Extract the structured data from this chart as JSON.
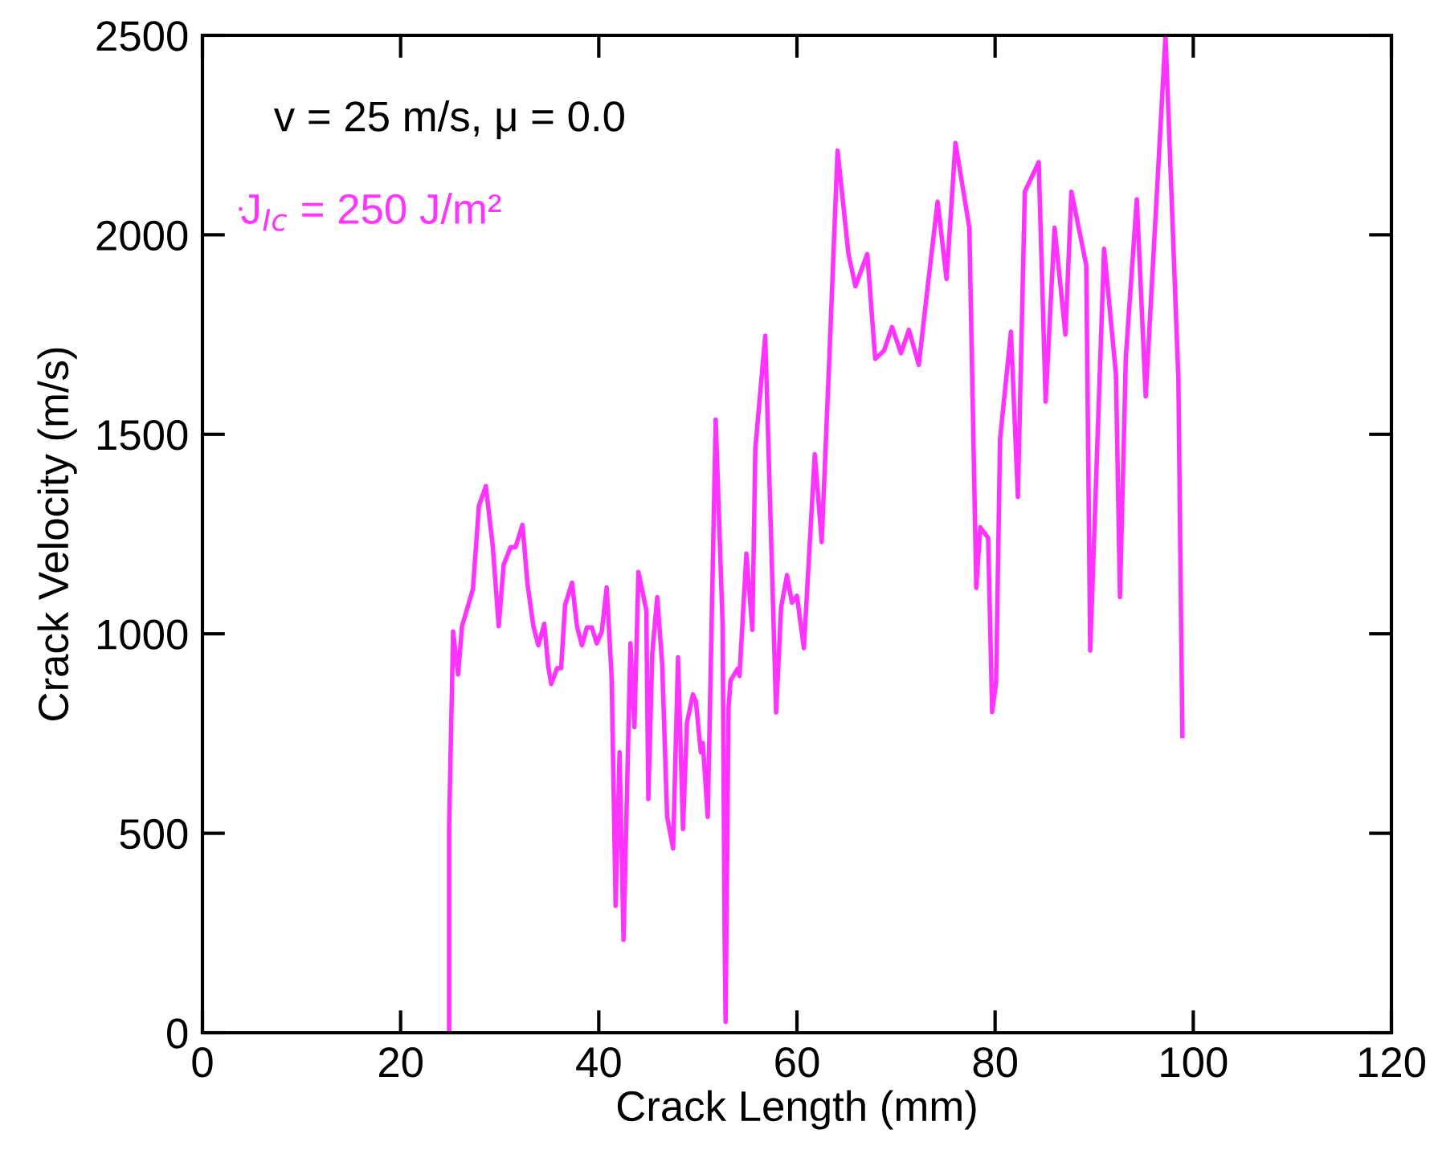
{
  "chart_data": {
    "type": "line",
    "xlabel": "Crack Length (mm)",
    "ylabel": "Crack Velocity (m/s)",
    "annotations": [
      "v = 25 m/s, μ = 0.0"
    ],
    "xlim": [
      0,
      120
    ],
    "xticks": [
      0,
      20,
      40,
      60,
      80,
      100,
      120
    ],
    "ylim": [
      0,
      2500
    ],
    "yticks": [
      0,
      500,
      1000,
      1500,
      2000,
      2500
    ],
    "grid": false,
    "legend": "top left",
    "marker": "none",
    "line_style": "solid",
    "series": [
      {
        "name": "J$_{Ic}$ = 250 J/m²",
        "color": "#ff33ff",
        "x": [
          24.9,
          24.9,
          25.3,
          25.8,
          26.2,
          27.3,
          27.9,
          28.6,
          29.3,
          29.9,
          30.4,
          31.1,
          31.6,
          32.3,
          32.8,
          33.4,
          33.9,
          34.5,
          34.9,
          35.2,
          35.8,
          36.2,
          36.6,
          37.3,
          37.8,
          38.3,
          38.8,
          39.3,
          39.8,
          40.3,
          40.8,
          41.3,
          41.7,
          42.1,
          42.5,
          43.2,
          43.6,
          44.0,
          44.8,
          45.0,
          45.4,
          45.9,
          46.4,
          46.9,
          47.5,
          48.0,
          48.5,
          48.9,
          49.5,
          49.8,
          50.3,
          50.5,
          51.0,
          51.8,
          52.5,
          52.7,
          52.8,
          53.1,
          53.3,
          54.0,
          54.2,
          54.9,
          55.5,
          55.8,
          56.8,
          57.9,
          58.4,
          59.0,
          59.5,
          60.0,
          60.7,
          61.8,
          62.5,
          63.3,
          64.1,
          65.2,
          65.9,
          67.1,
          67.9,
          68.8,
          69.6,
          70.5,
          71.3,
          72.3,
          73.2,
          74.2,
          75.1,
          76.0,
          77.4,
          78.1,
          78.5,
          79.3,
          79.7,
          80.1,
          80.5,
          81.6,
          82.3,
          83.0,
          84.4,
          85.1,
          86.0,
          87.1,
          87.7,
          89.2,
          89.6,
          91.0,
          92.2,
          92.6,
          93.2,
          94.3,
          95.2,
          97.2,
          98.5,
          98.9
        ],
        "values": [
          0,
          523,
          1006,
          898,
          1019,
          1112,
          1320,
          1370,
          1220,
          1019,
          1173,
          1217,
          1217,
          1273,
          1126,
          1019,
          971,
          1025,
          918,
          874,
          914,
          914,
          1072,
          1128,
          1019,
          971,
          1016,
          1016,
          976,
          1005,
          1116,
          891,
          318,
          703,
          233,
          976,
          766,
          1155,
          1059,
          586,
          951,
          1092,
          925,
          542,
          462,
          941,
          511,
          777,
          848,
          831,
          703,
          726,
          541,
          1537,
          1023,
          246,
          27,
          817,
          883,
          912,
          894,
          1201,
          1010,
          1464,
          1747,
          803,
          1066,
          1147,
          1078,
          1095,
          964,
          1450,
          1230,
          1710,
          2211,
          1952,
          1871,
          1952,
          1689,
          1710,
          1769,
          1703,
          1762,
          1674,
          1871,
          2083,
          1889,
          2230,
          2018,
          1115,
          1267,
          1240,
          804,
          878,
          1488,
          1757,
          1343,
          2108,
          2182,
          1582,
          2018,
          1750,
          2108,
          1924,
          958,
          1965,
          1649,
          1092,
          1696,
          2089,
          1595,
          2500,
          1636,
          744
        ]
      }
    ]
  }
}
